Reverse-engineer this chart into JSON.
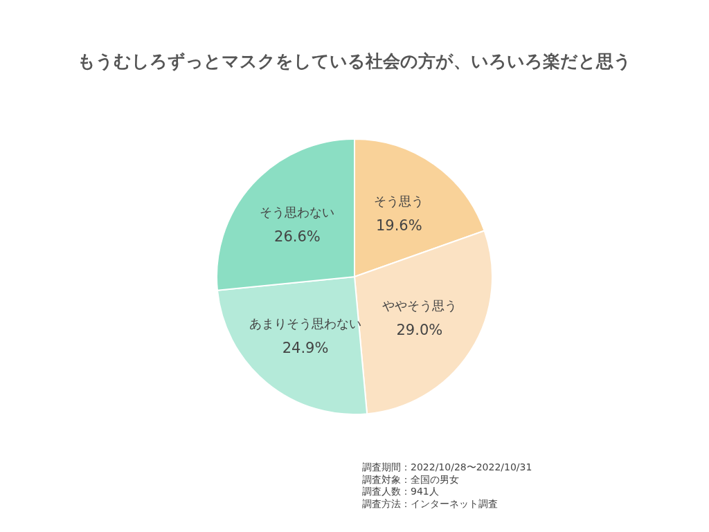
{
  "chart_data": {
    "type": "pie",
    "title": "もうむしろずっとマスクをしている社会の方が、いろいろ楽だと思う",
    "categories": [
      "そう思う",
      "ややそう思う",
      "あまりそう思わない",
      "そう思わない"
    ],
    "values": [
      19.6,
      29.0,
      24.9,
      26.6
    ],
    "value_labels": [
      "19.6%",
      "29.0%",
      "24.9%",
      "26.6%"
    ],
    "colors": [
      "#f9d299",
      "#fbe2c3",
      "#b4ead9",
      "#8bdec3"
    ],
    "annotations": [
      "調査期間：2022/10/28〜2022/10/31",
      "調査対象：全国の男女",
      "調査人数：941人",
      "調査方法：インターネット調査"
    ]
  }
}
